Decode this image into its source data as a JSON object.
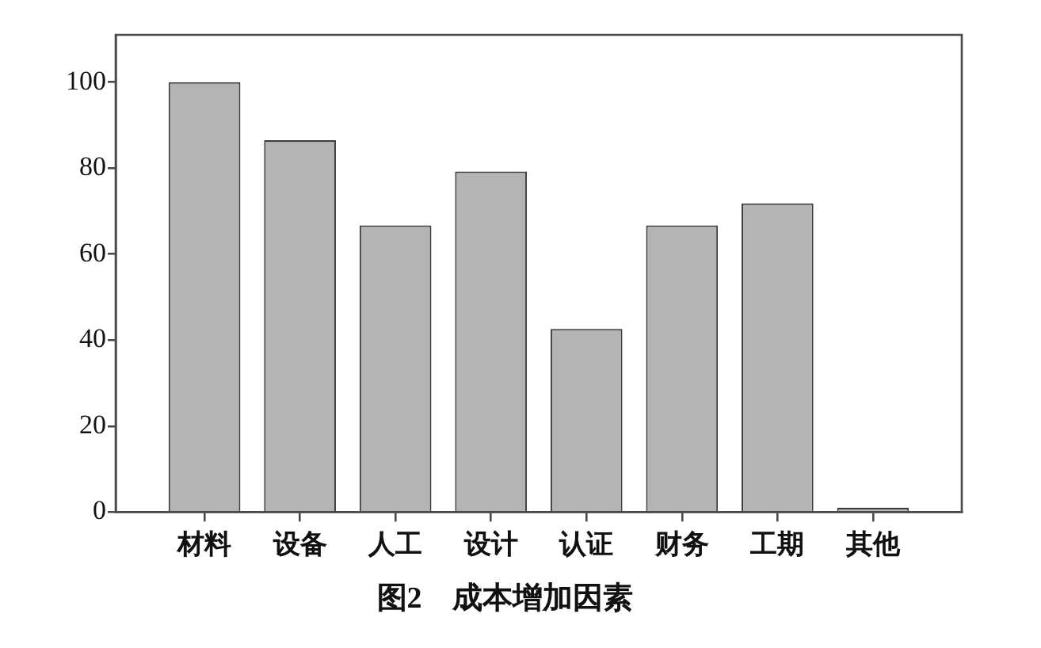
{
  "chart_data": {
    "type": "bar",
    "title": "图2　成本增加因素",
    "categories": [
      "材料",
      "设备",
      "人工",
      "设计",
      "认证",
      "财务",
      "工期",
      "其他"
    ],
    "values": [
      100,
      86.5,
      66.7,
      79.2,
      42.6,
      66.7,
      71.8,
      1
    ],
    "color": "#b4b4b4",
    "ylim": [
      0,
      111
    ],
    "yticks": [
      0,
      20,
      40,
      60,
      80,
      100
    ],
    "grid": false,
    "legend": false
  }
}
